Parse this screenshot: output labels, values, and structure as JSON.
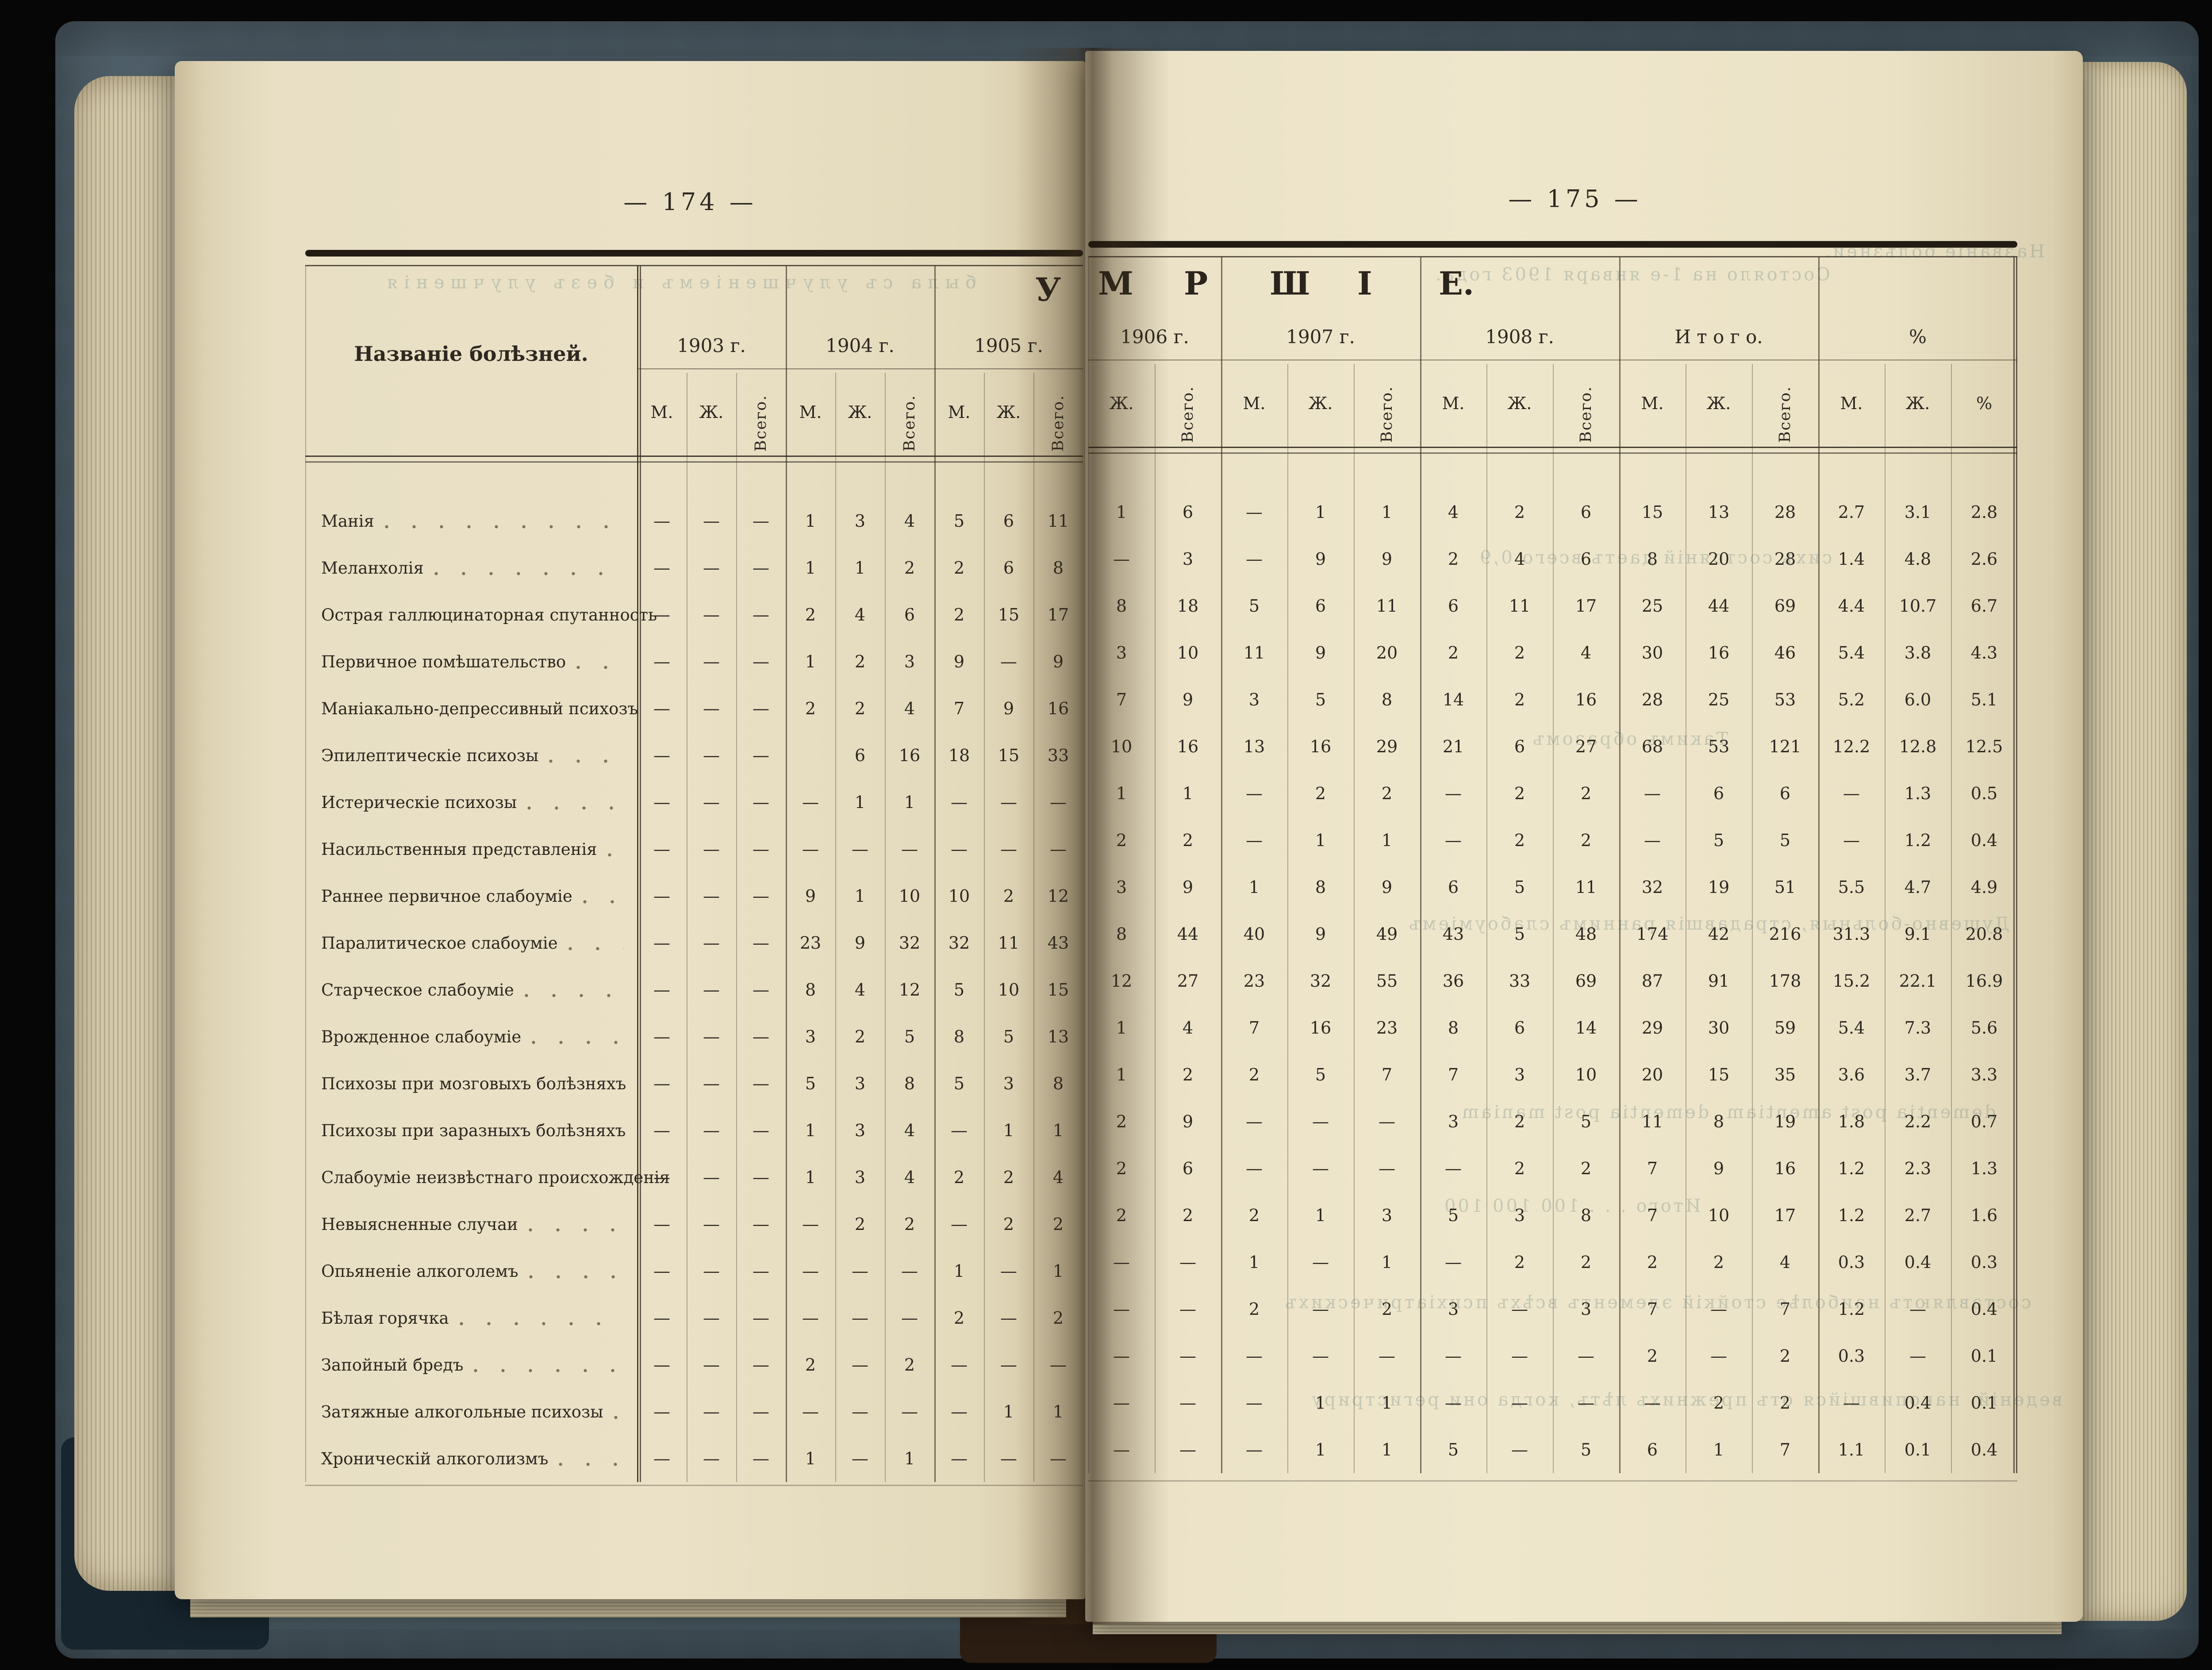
{
  "book": {
    "left_page_number": "— 174 —",
    "right_page_number": "— 175 —",
    "title_letters": [
      "У",
      "М",
      "Р",
      "Ш",
      "І",
      "Е."
    ],
    "paper_color": "#eae1c6",
    "cover_color": "#47565f",
    "ink_color": "#2e2820"
  },
  "table": {
    "row_header": "Названіе болѣзней.",
    "year_groups_left": [
      "1903 г.",
      "1904 г.",
      "1905 г."
    ],
    "year_groups_right": [
      "1906 г.",
      "1907 г.",
      "1908 г.",
      "И т о г о.",
      "%"
    ],
    "subheads_left": [
      "М.",
      "Ж.",
      "Всего.",
      "М.",
      "Ж.",
      "Всего.",
      "М.",
      "Ж.",
      "Всего."
    ],
    "subheads_right": [
      "Ж.",
      "Всего.",
      "М.",
      "Ж.",
      "Всего.",
      "М.",
      "Ж.",
      "Всего.",
      "М.",
      "Ж.",
      "Всего.",
      "М.",
      "Ж.",
      "%"
    ],
    "rows": [
      {
        "label": "Манія",
        "y1903": [
          "—",
          "—",
          "—"
        ],
        "y1904": [
          "1",
          "3",
          "4"
        ],
        "y1905": [
          "5",
          "6",
          "11"
        ],
        "y1906": [
          "1",
          "6"
        ],
        "y1907": [
          "—",
          "1",
          "1"
        ],
        "y1908": [
          "4",
          "2",
          "6"
        ],
        "total": [
          "15",
          "13",
          "28"
        ],
        "pct": [
          "2.7",
          "3.1",
          "2.8"
        ]
      },
      {
        "label": "Меланхолія",
        "y1903": [
          "—",
          "—",
          "—"
        ],
        "y1904": [
          "1",
          "1",
          "2"
        ],
        "y1905": [
          "2",
          "6",
          "8"
        ],
        "y1906": [
          "—",
          "3"
        ],
        "y1907": [
          "—",
          "9",
          "9"
        ],
        "y1908": [
          "2",
          "4",
          "6"
        ],
        "total": [
          "8",
          "20",
          "28"
        ],
        "pct": [
          "1.4",
          "4.8",
          "2.6"
        ]
      },
      {
        "label": "Острая галлюцинаторная спутанность",
        "y1903": [
          "—",
          "—",
          "—"
        ],
        "y1904": [
          "2",
          "4",
          "6"
        ],
        "y1905": [
          "2",
          "15",
          "17"
        ],
        "y1906": [
          "8",
          "18"
        ],
        "y1907": [
          "5",
          "6",
          "11"
        ],
        "y1908": [
          "6",
          "11",
          "17"
        ],
        "total": [
          "25",
          "44",
          "69"
        ],
        "pct": [
          "4.4",
          "10.7",
          "6.7"
        ]
      },
      {
        "label": "Первичное помѣшательство",
        "y1903": [
          "—",
          "—",
          "—"
        ],
        "y1904": [
          "1",
          "2",
          "3"
        ],
        "y1905": [
          "9",
          "—",
          "9"
        ],
        "y1906": [
          "3",
          "10"
        ],
        "y1907": [
          "11",
          "9",
          "20"
        ],
        "y1908": [
          "2",
          "2",
          "4"
        ],
        "total": [
          "30",
          "16",
          "46"
        ],
        "pct": [
          "5.4",
          "3.8",
          "4.3"
        ]
      },
      {
        "label": "Маніакально-депрессивный психозъ",
        "y1903": [
          "—",
          "—",
          "—"
        ],
        "y1904": [
          "2",
          "2",
          "4"
        ],
        "y1905": [
          "7",
          "9",
          "16"
        ],
        "y1906": [
          "7",
          "9"
        ],
        "y1907": [
          "3",
          "5",
          "8"
        ],
        "y1908": [
          "14",
          "2",
          "16"
        ],
        "total": [
          "28",
          "25",
          "53"
        ],
        "pct": [
          "5.2",
          "6.0",
          "5.1"
        ]
      },
      {
        "label": "Эпилептическіе психозы",
        "y1903": [
          "—",
          "—",
          "—"
        ],
        "y1904": [
          "",
          "6",
          "16"
        ],
        "y1905": [
          "18",
          "15",
          "33"
        ],
        "y1906": [
          "10",
          "16"
        ],
        "y1907": [
          "13",
          "16",
          "29"
        ],
        "y1908": [
          "21",
          "6",
          "27"
        ],
        "total": [
          "68",
          "53",
          "121"
        ],
        "pct": [
          "12.2",
          "12.8",
          "12.5"
        ]
      },
      {
        "label": "Истерическіе психозы",
        "y1903": [
          "—",
          "—",
          "—"
        ],
        "y1904": [
          "—",
          "1",
          "1"
        ],
        "y1905": [
          "—",
          "—",
          "—"
        ],
        "y1906": [
          "1",
          "1"
        ],
        "y1907": [
          "—",
          "2",
          "2"
        ],
        "y1908": [
          "—",
          "2",
          "2"
        ],
        "total": [
          "—",
          "6",
          "6"
        ],
        "pct": [
          "—",
          "1.3",
          "0.5"
        ]
      },
      {
        "label": "Насильственныя представленія",
        "y1903": [
          "—",
          "—",
          "—"
        ],
        "y1904": [
          "—",
          "—",
          "—"
        ],
        "y1905": [
          "—",
          "—",
          "—"
        ],
        "y1906": [
          "2",
          "2"
        ],
        "y1907": [
          "—",
          "1",
          "1"
        ],
        "y1908": [
          "—",
          "2",
          "2"
        ],
        "total": [
          "—",
          "5",
          "5"
        ],
        "pct": [
          "—",
          "1.2",
          "0.4"
        ]
      },
      {
        "label": "Раннее первичное слабоуміе",
        "y1903": [
          "—",
          "—",
          "—"
        ],
        "y1904": [
          "9",
          "1",
          "10"
        ],
        "y1905": [
          "10",
          "2",
          "12"
        ],
        "y1906": [
          "3",
          "9"
        ],
        "y1907": [
          "1",
          "8",
          "9"
        ],
        "y1908": [
          "6",
          "5",
          "11"
        ],
        "total": [
          "32",
          "19",
          "51"
        ],
        "pct": [
          "5.5",
          "4.7",
          "4.9"
        ]
      },
      {
        "label": "Паралитическое слабоуміе",
        "y1903": [
          "—",
          "—",
          "—"
        ],
        "y1904": [
          "23",
          "9",
          "32"
        ],
        "y1905": [
          "32",
          "11",
          "43"
        ],
        "y1906": [
          "8",
          "44"
        ],
        "y1907": [
          "40",
          "9",
          "49"
        ],
        "y1908": [
          "43",
          "5",
          "48"
        ],
        "total": [
          "174",
          "42",
          "216"
        ],
        "pct": [
          "31.3",
          "9.1",
          "20.8"
        ]
      },
      {
        "label": "Старческое слабоуміе",
        "y1903": [
          "—",
          "—",
          "—"
        ],
        "y1904": [
          "8",
          "4",
          "12"
        ],
        "y1905": [
          "5",
          "10",
          "15"
        ],
        "y1906": [
          "12",
          "27"
        ],
        "y1907": [
          "23",
          "32",
          "55"
        ],
        "y1908": [
          "36",
          "33",
          "69"
        ],
        "total": [
          "87",
          "91",
          "178"
        ],
        "pct": [
          "15.2",
          "22.1",
          "16.9"
        ]
      },
      {
        "label": "Врожденное слабоуміе",
        "y1903": [
          "—",
          "—",
          "—"
        ],
        "y1904": [
          "3",
          "2",
          "5"
        ],
        "y1905": [
          "8",
          "5",
          "13"
        ],
        "y1906": [
          "1",
          "4"
        ],
        "y1907": [
          "7",
          "16",
          "23"
        ],
        "y1908": [
          "8",
          "6",
          "14"
        ],
        "total": [
          "29",
          "30",
          "59"
        ],
        "pct": [
          "5.4",
          "7.3",
          "5.6"
        ]
      },
      {
        "label": "Психозы при мозговыхъ болѣзняхъ",
        "y1903": [
          "—",
          "—",
          "—"
        ],
        "y1904": [
          "5",
          "3",
          "8"
        ],
        "y1905": [
          "5",
          "3",
          "8"
        ],
        "y1906": [
          "1",
          "2"
        ],
        "y1907": [
          "2",
          "5",
          "7"
        ],
        "y1908": [
          "7",
          "3",
          "10"
        ],
        "total": [
          "20",
          "15",
          "35"
        ],
        "pct": [
          "3.6",
          "3.7",
          "3.3"
        ]
      },
      {
        "label": "Психозы при заразныхъ болѣзняхъ",
        "y1903": [
          "—",
          "—",
          "—"
        ],
        "y1904": [
          "1",
          "3",
          "4"
        ],
        "y1905": [
          "—",
          "1",
          "1"
        ],
        "y1906": [
          "2",
          "9"
        ],
        "y1907": [
          "—",
          "—",
          "—"
        ],
        "y1908": [
          "3",
          "2",
          "5"
        ],
        "total": [
          "11",
          "8",
          "19"
        ],
        "pct": [
          "1.8",
          "2.2",
          "0.7"
        ]
      },
      {
        "label": "Слабоуміе неизвѣстнаго происхожденія",
        "y1903": [
          "—",
          "—",
          "—"
        ],
        "y1904": [
          "1",
          "3",
          "4"
        ],
        "y1905": [
          "2",
          "2",
          "4"
        ],
        "y1906": [
          "2",
          "6"
        ],
        "y1907": [
          "—",
          "—",
          "—"
        ],
        "y1908": [
          "—",
          "2",
          "2"
        ],
        "total": [
          "7",
          "9",
          "16"
        ],
        "pct": [
          "1.2",
          "2.3",
          "1.3"
        ]
      },
      {
        "label": "Невыясненные случаи",
        "y1903": [
          "—",
          "—",
          "—"
        ],
        "y1904": [
          "—",
          "2",
          "2"
        ],
        "y1905": [
          "—",
          "2",
          "2"
        ],
        "y1906": [
          "2",
          "2"
        ],
        "y1907": [
          "2",
          "1",
          "3"
        ],
        "y1908": [
          "5",
          "3",
          "8"
        ],
        "total": [
          "7",
          "10",
          "17"
        ],
        "pct": [
          "1.2",
          "2.7",
          "1.6"
        ]
      },
      {
        "label": "Опьяненіе алкоголемъ",
        "y1903": [
          "—",
          "—",
          "—"
        ],
        "y1904": [
          "—",
          "—",
          "—"
        ],
        "y1905": [
          "1",
          "—",
          "1"
        ],
        "y1906": [
          "—",
          "—"
        ],
        "y1907": [
          "1",
          "—",
          "1"
        ],
        "y1908": [
          "—",
          "2",
          "2"
        ],
        "total": [
          "2",
          "2",
          "4"
        ],
        "pct": [
          "0.3",
          "0.4",
          "0.3"
        ]
      },
      {
        "label": "Бѣлая горячка",
        "y1903": [
          "—",
          "—",
          "—"
        ],
        "y1904": [
          "—",
          "—",
          "—"
        ],
        "y1905": [
          "2",
          "—",
          "2"
        ],
        "y1906": [
          "—",
          "—"
        ],
        "y1907": [
          "2",
          "—",
          "2"
        ],
        "y1908": [
          "3",
          "—",
          "3"
        ],
        "total": [
          "7",
          "—",
          "7"
        ],
        "pct": [
          "1.2",
          "—",
          "0.4"
        ]
      },
      {
        "label": "Запойный бредъ",
        "y1903": [
          "—",
          "—",
          "—"
        ],
        "y1904": [
          "2",
          "—",
          "2"
        ],
        "y1905": [
          "—",
          "—",
          "—"
        ],
        "y1906": [
          "—",
          "—"
        ],
        "y1907": [
          "—",
          "—",
          "—"
        ],
        "y1908": [
          "—",
          "—",
          "—"
        ],
        "total": [
          "2",
          "—",
          "2"
        ],
        "pct": [
          "0.3",
          "—",
          "0.1"
        ]
      },
      {
        "label": "Затяжные алкогольные психозы",
        "y1903": [
          "—",
          "—",
          "—"
        ],
        "y1904": [
          "—",
          "—",
          "—"
        ],
        "y1905": [
          "—",
          "1",
          "1"
        ],
        "y1906": [
          "—",
          "—"
        ],
        "y1907": [
          "—",
          "1",
          "1"
        ],
        "y1908": [
          "—",
          "—",
          "—"
        ],
        "total": [
          "—",
          "2",
          "2"
        ],
        "pct": [
          "—",
          "0.4",
          "0.1"
        ]
      },
      {
        "label": "Хроническій алкоголизмъ",
        "y1903": [
          "—",
          "—",
          "—"
        ],
        "y1904": [
          "1",
          "—",
          "1"
        ],
        "y1905": [
          "—",
          "—",
          "—"
        ],
        "y1906": [
          "—",
          "—"
        ],
        "y1907": [
          "—",
          "1",
          "1"
        ],
        "y1908": [
          "5",
          "—",
          "5"
        ],
        "total": [
          "6",
          "1",
          "7"
        ],
        "pct": [
          "1.1",
          "0.1",
          "0.4"
        ]
      }
    ]
  },
  "bleed_text": {
    "left": [
      "была съ улучшеніемъ и безъ улучшенія"
    ],
    "right": [
      "Состояло на 1-е января 1903 года.",
      "Названіе болѣзней.",
      "сихъ состояній даетъ всего 0,9",
      "Такимъ образомъ",
      "Душевно-больныя, страдавшія раннимъ слабоуміемъ",
      "dementia post amentiam, dementia post maniam",
      "Итого . . . 100 100 100",
      "составляютъ наиболѣе стойкій элементъ всѣхъ психіатрическихъ",
      "веденій, накопившійся отъ прежнихъ лѣтъ, когда они регистриру"
    ]
  }
}
